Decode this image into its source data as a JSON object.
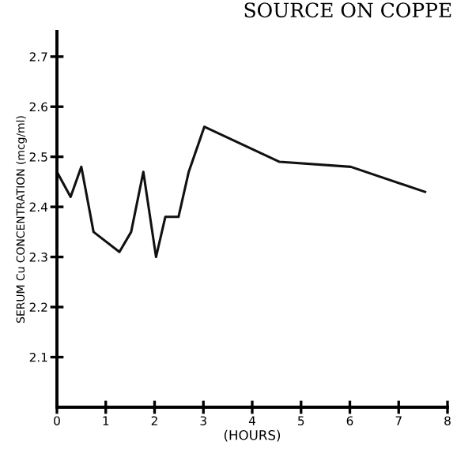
{
  "chart_data": {
    "type": "line",
    "xlabel": "(HOURS)",
    "ylabel": "SERUM Cu CONCENTRATION (mcg/ml)",
    "annotations": [
      "SOURCE ON COPPE"
    ],
    "x": [
      0,
      0.28,
      0.5,
      0.75,
      1.28,
      1.52,
      1.77,
      2.03,
      2.22,
      2.49,
      2.7,
      3.02,
      4.56,
      6.02,
      7.54
    ],
    "series": [
      {
        "color": "#111111",
        "values": [
          2.47,
          2.42,
          2.48,
          2.35,
          2.31,
          2.35,
          2.47,
          2.3,
          2.38,
          2.38,
          2.47,
          2.56,
          2.49,
          2.48,
          2.43
        ]
      }
    ],
    "xlim": [
      0,
      8
    ],
    "ylim": [
      2.0,
      2.75
    ],
    "xticks": [
      0,
      1,
      2,
      3,
      4,
      5,
      6,
      7,
      8
    ],
    "yticks": [
      2.1,
      2.2,
      2.3,
      2.4,
      2.5,
      2.6,
      2.7
    ],
    "grid": false,
    "legend": false,
    "marker": "none",
    "line_style": "solid"
  }
}
